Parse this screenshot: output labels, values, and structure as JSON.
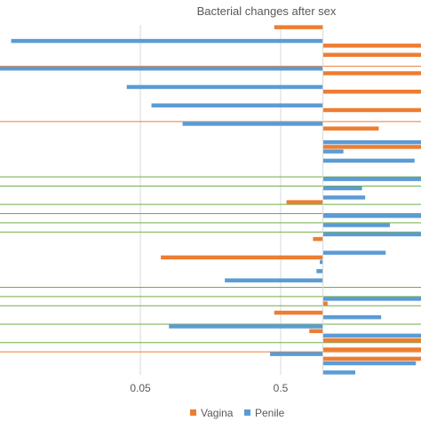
{
  "chart_data": {
    "type": "bar",
    "orientation": "horizontal",
    "title": "Bacterial changes after sex",
    "x_scale": "log",
    "xlim": [
      0.005,
      5.0
    ],
    "x_ticks": [
      {
        "value": 0.05,
        "label": "0.05"
      },
      {
        "value": 0.5,
        "label": "0.5"
      }
    ],
    "baseline": 1.0,
    "grid": true,
    "legend_position": "bottom",
    "series": [
      {
        "name": "Vagina",
        "color": "#ED7D31",
        "values": [
          0.45,
          null,
          5.0,
          5.0,
          null,
          5.0,
          null,
          5.0,
          null,
          5.0,
          null,
          2.5,
          null,
          5.0,
          null,
          null,
          null,
          null,
          null,
          0.55,
          null,
          null,
          null,
          0.85,
          null,
          0.07,
          null,
          null,
          null,
          null,
          1.08,
          0.45,
          null,
          0.8,
          5.0,
          5.0,
          5.0,
          null
        ]
      },
      {
        "name": "Penile",
        "color": "#5B9BD5",
        "values": [
          null,
          0.006,
          null,
          null,
          0.005,
          null,
          0.04,
          null,
          0.06,
          null,
          0.1,
          null,
          5.0,
          1.4,
          4.5,
          null,
          5.0,
          1.9,
          2.0,
          null,
          5.0,
          3.0,
          5.0,
          null,
          2.8,
          0.95,
          0.9,
          0.2,
          null,
          5.0,
          null,
          2.6,
          0.08,
          5.0,
          null,
          0.42,
          4.6,
          1.7
        ]
      }
    ],
    "reference_lines": [
      {
        "color": "#ED7D31",
        "row": 4
      },
      {
        "color": "#ED7D31",
        "row": 10
      },
      {
        "color": "#70AD47",
        "row": 16
      },
      {
        "color": "#70AD47",
        "row": 17
      },
      {
        "color": "#70AD47",
        "row": 19
      },
      {
        "color": "#70AD47",
        "row": 20
      },
      {
        "color": "#70AD47",
        "row": 21
      },
      {
        "color": "#70AD47",
        "row": 22
      },
      {
        "color": "#70AD47",
        "row": 28
      },
      {
        "color": "#70AD47",
        "row": 29
      },
      {
        "color": "#70AD47",
        "row": 30
      },
      {
        "color": "#70AD47",
        "row": 32
      },
      {
        "color": "#70AD47",
        "row": 34
      },
      {
        "color": "#ED7D31",
        "row": 35
      }
    ]
  }
}
